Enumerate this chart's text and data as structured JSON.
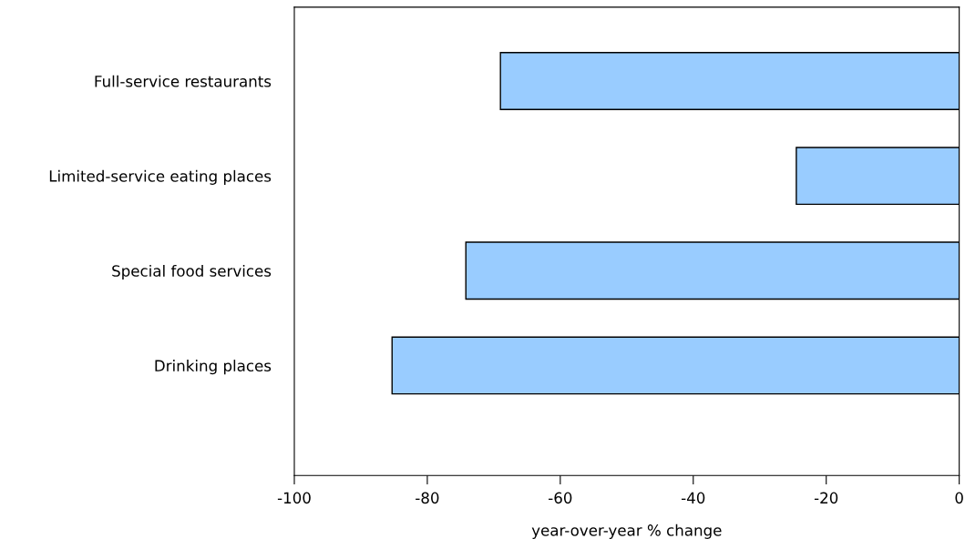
{
  "chart_data": {
    "type": "bar",
    "orientation": "horizontal",
    "categories": [
      "Full-service restaurants",
      "Limited-service eating places",
      "Special food services",
      "Drinking places"
    ],
    "values": [
      -69,
      -24.5,
      -74.2,
      -85.3
    ],
    "color": "#99ccff",
    "xlabel": "year-over-year % change",
    "xlim": [
      -100,
      0
    ],
    "xticks": [
      -100,
      -80,
      -60,
      -40,
      -20,
      0
    ],
    "grid": false,
    "legend": false
  }
}
